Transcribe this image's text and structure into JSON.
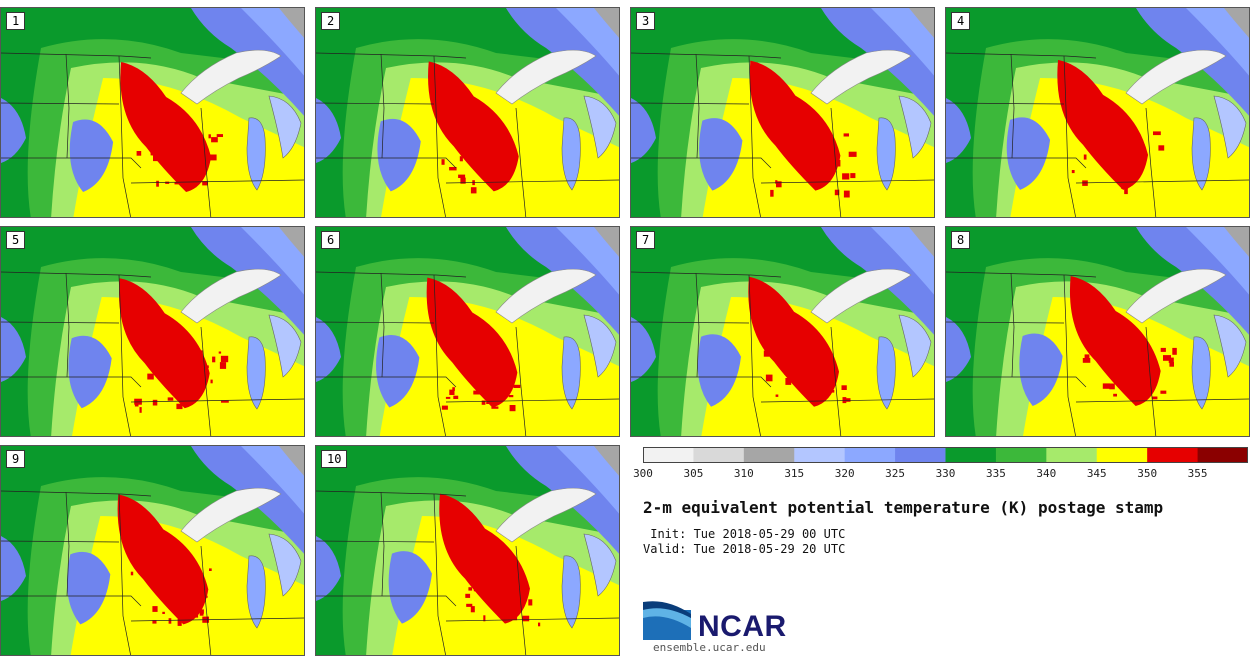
{
  "panels": [
    {
      "label": "1"
    },
    {
      "label": "2"
    },
    {
      "label": "3"
    },
    {
      "label": "4"
    },
    {
      "label": "5"
    },
    {
      "label": "6"
    },
    {
      "label": "7"
    },
    {
      "label": "8"
    },
    {
      "label": "9"
    },
    {
      "label": "10"
    }
  ],
  "colorbar": {
    "ticks": [
      "300",
      "305",
      "310",
      "315",
      "320",
      "325",
      "330",
      "335",
      "340",
      "345",
      "350",
      "355"
    ],
    "colors": [
      "#f2f2f2",
      "#d9d9d9",
      "#a6a6a6",
      "#b3c6ff",
      "#8ca8ff",
      "#6f84ee",
      "#0a9a2c",
      "#3cb83a",
      "#a6ea6b",
      "#ffff00",
      "#e60000",
      "#8b0000"
    ]
  },
  "title": "2-m equivalent potential temperature (K) postage stamp",
  "init": " Init: Tue 2018-05-29 00 UTC",
  "valid": "Valid: Tue 2018-05-29 20 UTC",
  "logo": {
    "text": "NCAR",
    "url": "ensemble.ucar.edu"
  }
}
